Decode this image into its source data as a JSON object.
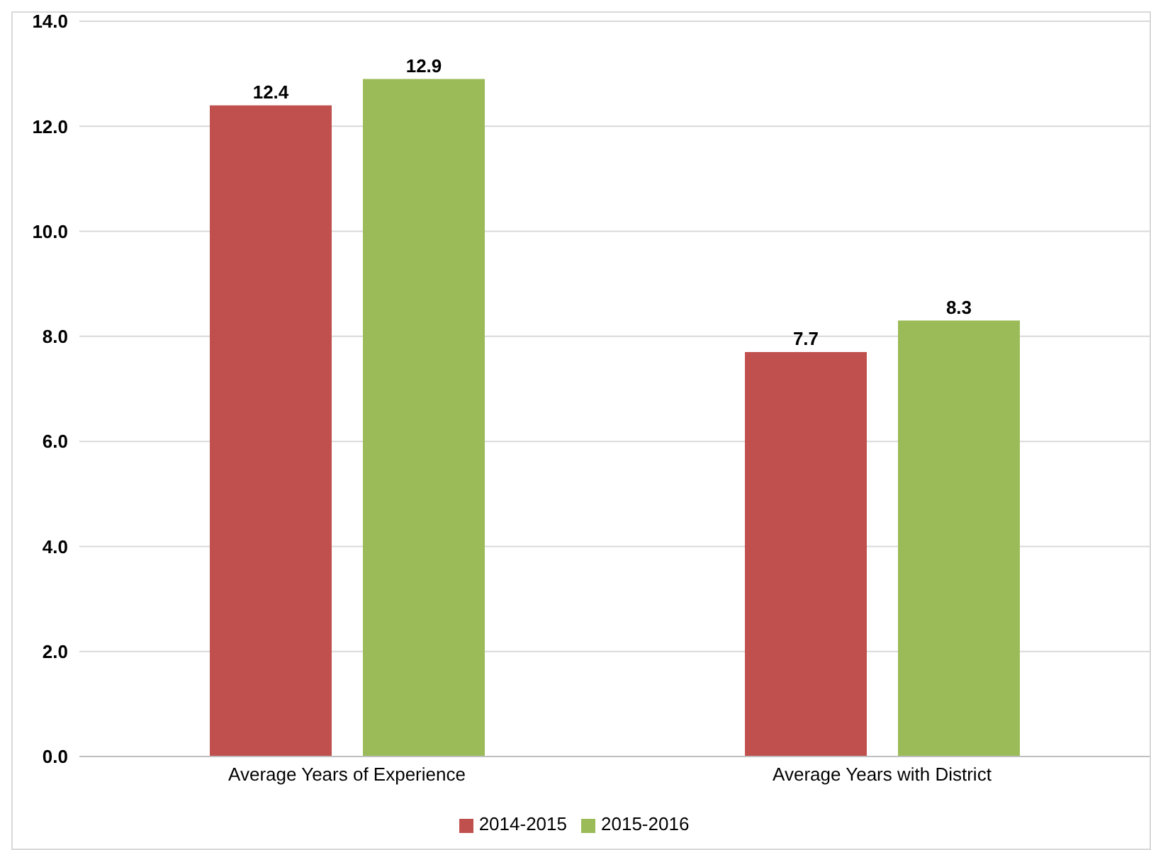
{
  "chart_data": {
    "type": "bar",
    "categories": [
      "Average Years of Experience",
      "Average Years with District"
    ],
    "series": [
      {
        "name": "2014-2015",
        "color": "#c0504d",
        "values": [
          12.4,
          7.7
        ]
      },
      {
        "name": "2015-2016",
        "color": "#9bbb59",
        "values": [
          12.9,
          8.3
        ]
      }
    ],
    "ylim": [
      0,
      14
    ],
    "yticks": [
      {
        "value": 0,
        "label": "0.0"
      },
      {
        "value": 2,
        "label": "2.0"
      },
      {
        "value": 4,
        "label": "4.0"
      },
      {
        "value": 6,
        "label": "6.0"
      },
      {
        "value": 8,
        "label": "8.0"
      },
      {
        "value": 10,
        "label": "10.0"
      },
      {
        "value": 12,
        "label": "12.0"
      },
      {
        "value": 14,
        "label": "14.0"
      }
    ],
    "grid": "y",
    "legend": "bottom",
    "data_labels": true
  }
}
